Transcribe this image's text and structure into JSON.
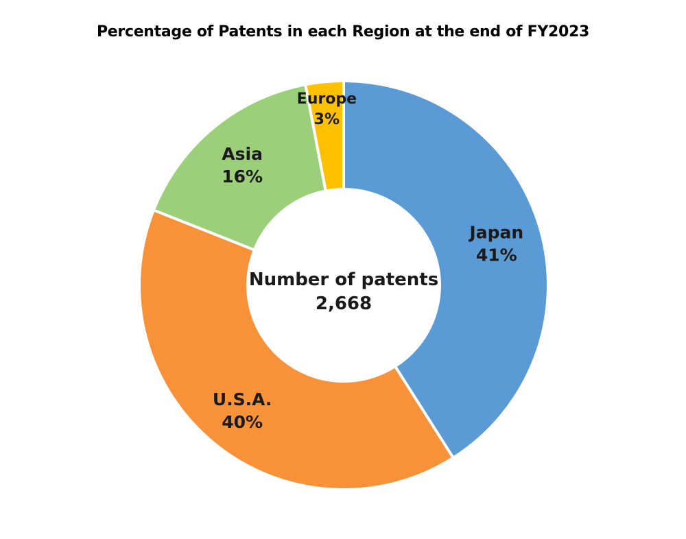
{
  "chart_data": {
    "type": "pie",
    "title": "Percentage of Patents in each Region at the end of FY2023",
    "center_label": "Number of patents",
    "center_value": "2,668",
    "slices": [
      {
        "name": "Japan",
        "value": 41,
        "label": "41%",
        "color": "#5b9bd5"
      },
      {
        "name": "U.S.A.",
        "value": 40,
        "label": "40%",
        "color": "#f79239"
      },
      {
        "name": "Asia",
        "value": 16,
        "label": "16%",
        "color": "#9bcf79"
      },
      {
        "name": "Europe",
        "value": 3,
        "label": "3%",
        "color": "#ffc000"
      }
    ]
  }
}
